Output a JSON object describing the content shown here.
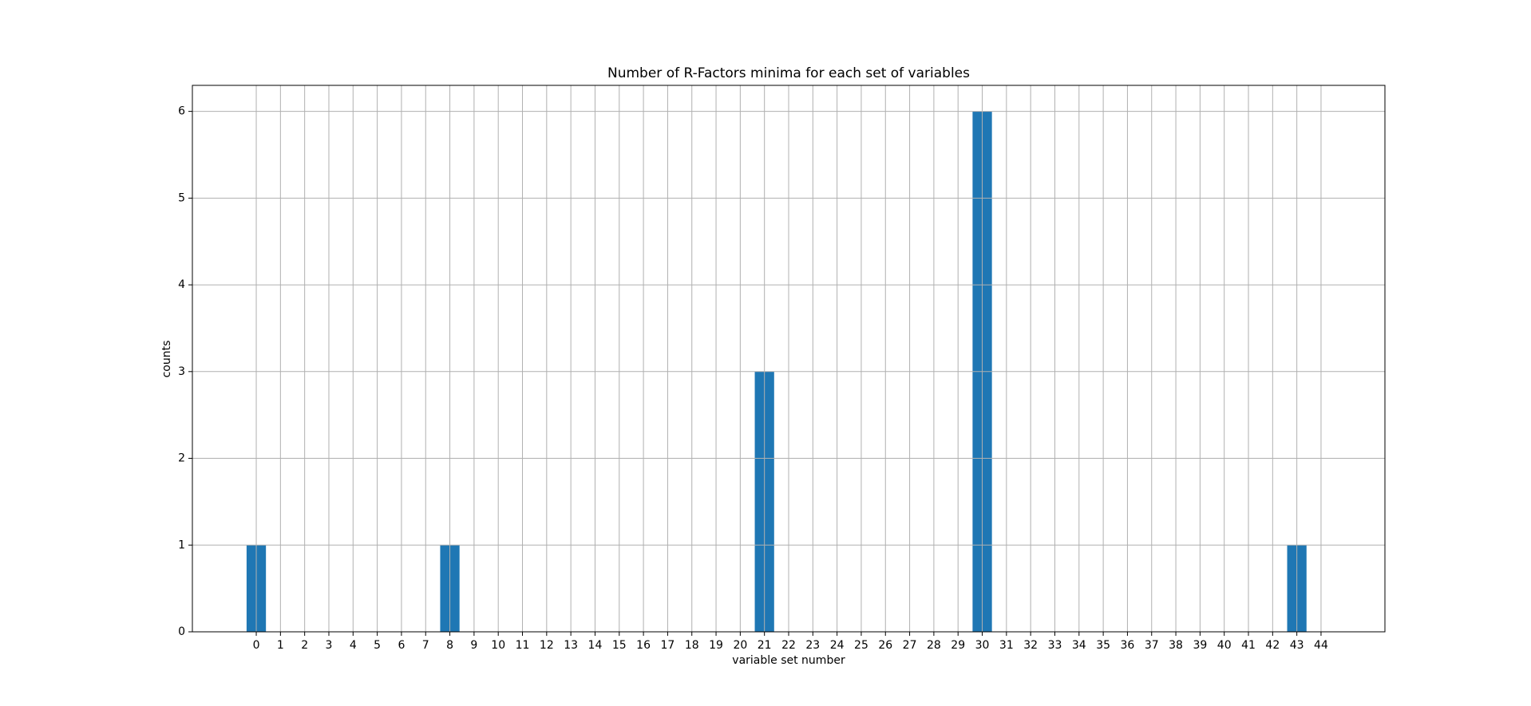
{
  "chart_data": {
    "type": "bar",
    "title": "Number of R-Factors minima for each set of variables",
    "x_label": "variable set number",
    "y_label": "counts",
    "x": [
      0,
      1,
      2,
      3,
      4,
      5,
      6,
      7,
      8,
      9,
      10,
      11,
      12,
      13,
      14,
      15,
      16,
      17,
      18,
      19,
      20,
      21,
      22,
      23,
      24,
      25,
      26,
      27,
      28,
      29,
      30,
      31,
      32,
      33,
      34,
      35,
      36,
      37,
      38,
      39,
      40,
      41,
      42,
      43,
      44
    ],
    "values": [
      1,
      0,
      0,
      0,
      0,
      0,
      0,
      0,
      1,
      0,
      0,
      0,
      0,
      0,
      0,
      0,
      0,
      0,
      0,
      0,
      0,
      3,
      0,
      0,
      0,
      0,
      0,
      0,
      0,
      0,
      6,
      0,
      0,
      0,
      0,
      0,
      0,
      0,
      0,
      0,
      0,
      0,
      0,
      1,
      0
    ],
    "color": "#1f77b4",
    "xlim": [
      -2.64,
      46.64
    ],
    "ylim": [
      0,
      6.3
    ],
    "xticks": [
      0,
      1,
      2,
      3,
      4,
      5,
      6,
      7,
      8,
      9,
      10,
      11,
      12,
      13,
      14,
      15,
      16,
      17,
      18,
      19,
      20,
      21,
      22,
      23,
      24,
      25,
      26,
      27,
      28,
      29,
      30,
      31,
      32,
      33,
      34,
      35,
      36,
      37,
      38,
      39,
      40,
      41,
      42,
      43,
      44
    ],
    "yticks": [
      0,
      1,
      2,
      3,
      4,
      5,
      6
    ],
    "grid": true
  }
}
